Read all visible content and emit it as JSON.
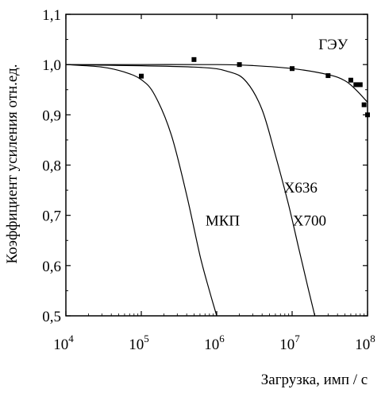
{
  "chart_data": {
    "type": "scatter",
    "title": "",
    "xlabel": "Загрузка, имп / с",
    "ylabel": "Коэффициент  усиления   отн.ед.",
    "xscale": "log",
    "xlim": [
      10000,
      100000000
    ],
    "ylim": [
      0.5,
      1.1
    ],
    "grid": false,
    "x_ticks": [
      {
        "base": "10",
        "exp": "4",
        "value": 10000
      },
      {
        "base": "10",
        "exp": "5",
        "value": 100000
      },
      {
        "base": "10",
        "exp": "6",
        "value": 1000000
      },
      {
        "base": "10",
        "exp": "7",
        "value": 10000000
      },
      {
        "base": "10",
        "exp": "8",
        "value": 100000000
      }
    ],
    "y_ticks": [
      "0,5",
      "0,6",
      "0,7",
      "0,8",
      "0,9",
      "1,0",
      "1,1"
    ],
    "y_tick_values": [
      0.5,
      0.6,
      0.7,
      0.8,
      0.9,
      1.0,
      1.1
    ],
    "series": [
      {
        "name": "ГЭУ",
        "kind": "line+markers",
        "curve": [
          [
            10000,
            1.0
          ],
          [
            100000,
            1.0
          ],
          [
            1000000,
            1.0
          ],
          [
            3000000,
            0.998
          ],
          [
            10000000,
            0.992
          ],
          [
            30000000,
            0.98
          ],
          [
            50000000,
            0.968
          ],
          [
            70000000,
            0.95
          ],
          [
            100000000,
            0.925
          ]
        ],
        "points": [
          [
            100000,
            0.977
          ],
          [
            500000,
            1.01
          ],
          [
            2000000,
            1.0
          ],
          [
            10000000,
            0.992
          ],
          [
            30000000,
            0.978
          ],
          [
            60000000,
            0.969
          ],
          [
            70000000,
            0.96
          ],
          [
            80000000,
            0.96
          ],
          [
            90000000,
            0.92
          ],
          [
            100000000,
            0.9
          ]
        ]
      },
      {
        "name": "МКП",
        "kind": "line",
        "curve": [
          [
            10000,
            1.0
          ],
          [
            30000,
            0.995
          ],
          [
            60000,
            0.985
          ],
          [
            100000,
            0.97
          ],
          [
            150000,
            0.94
          ],
          [
            250000,
            0.86
          ],
          [
            400000,
            0.74
          ],
          [
            600000,
            0.62
          ],
          [
            800000,
            0.55
          ],
          [
            1000000,
            0.5
          ]
        ]
      },
      {
        "name": "X636 / X700",
        "kind": "line",
        "curve": [
          [
            10000,
            1.0
          ],
          [
            500000,
            0.995
          ],
          [
            1500000,
            0.985
          ],
          [
            2500000,
            0.965
          ],
          [
            4000000,
            0.91
          ],
          [
            6000000,
            0.82
          ],
          [
            9000000,
            0.72
          ],
          [
            12000000,
            0.64
          ],
          [
            16000000,
            0.56
          ],
          [
            20000000,
            0.5
          ]
        ]
      }
    ],
    "annotations": [
      {
        "text": "ГЭУ",
        "at": [
          35000000,
          1.03
        ]
      },
      {
        "text": "X636",
        "at": [
          13000000,
          0.745
        ]
      },
      {
        "text": "МКП",
        "at": [
          1200000,
          0.68
        ]
      },
      {
        "text": "X700",
        "at": [
          17000000,
          0.68
        ]
      }
    ]
  }
}
